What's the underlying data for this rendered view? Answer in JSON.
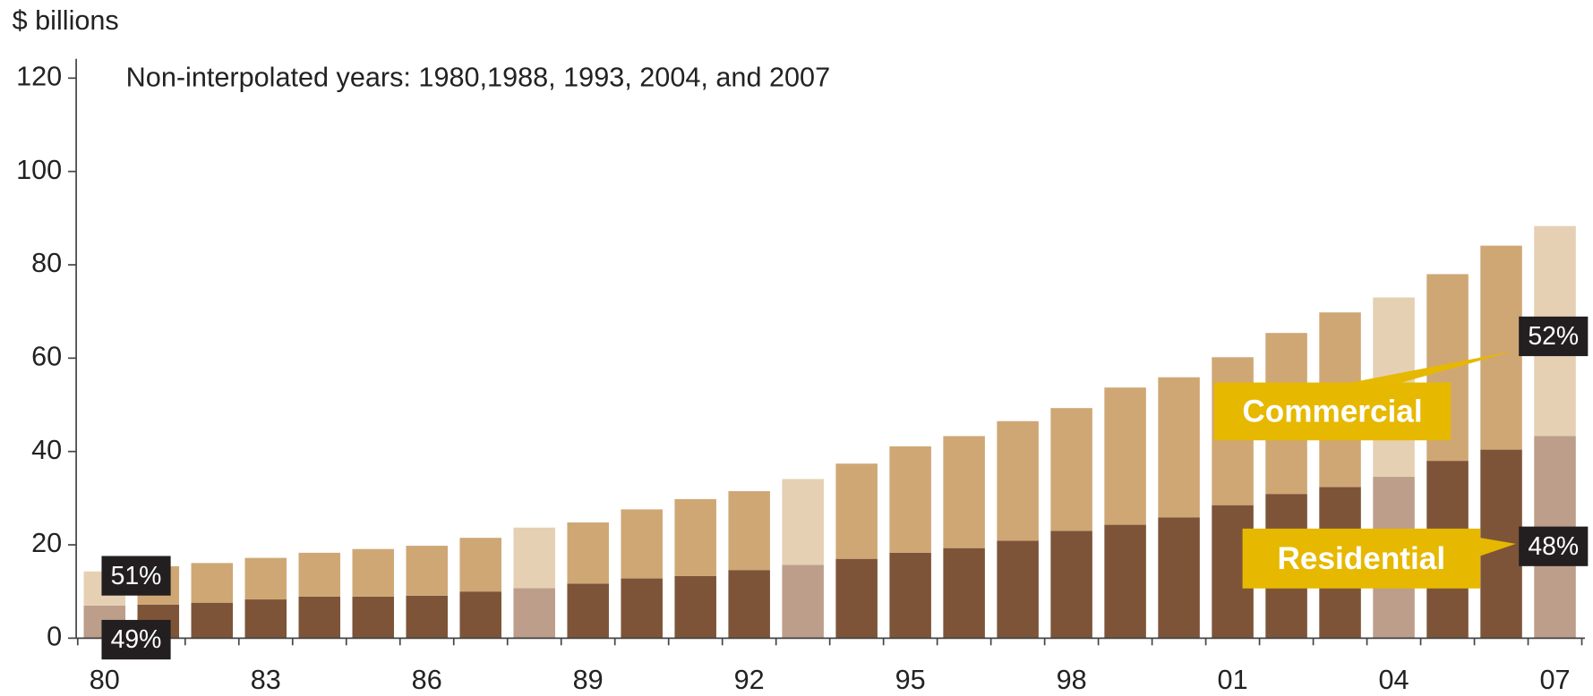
{
  "chart_data": {
    "type": "stacked_bar",
    "y_axis_label": "$ billions",
    "note": "Non-interpolated years: 1980,1988, 1993, 2004, and 2007",
    "categories": [
      "80",
      null,
      null,
      "83",
      null,
      null,
      "86",
      null,
      null,
      "89",
      null,
      null,
      "92",
      null,
      null,
      "95",
      null,
      null,
      "98",
      null,
      null,
      "01",
      null,
      null,
      "04",
      null,
      null,
      "07"
    ],
    "series": [
      {
        "name": "Residential",
        "color": "#7d5438",
        "colors": [
          "#bc9e8a",
          "#7d5438",
          "#7d5438",
          "#7d5438",
          "#7d5438",
          "#7d5438",
          "#7d5438",
          "#7d5438",
          "#bc9e8a",
          "#7d5438",
          "#7d5438",
          "#7d5438",
          "#7d5438",
          "#bc9e8a",
          "#7d5438",
          "#7d5438",
          "#7d5438",
          "#7d5438",
          "#7d5438",
          "#7d5438",
          "#7d5438",
          "#7d5438",
          "#7d5438",
          "#7d5438",
          "#bc9e8a",
          "#7d5438",
          "#7d5438",
          "#bc9e8a"
        ],
        "values": [
          7.0,
          7.2,
          7.6,
          8.3,
          8.9,
          8.9,
          9.1,
          10.0,
          10.7,
          11.7,
          12.8,
          13.3,
          14.6,
          15.7,
          17.0,
          18.3,
          19.3,
          20.9,
          23.0,
          24.3,
          25.9,
          28.5,
          30.9,
          32.4,
          34.6,
          38.0,
          40.4,
          43.3
        ]
      },
      {
        "name": "Commercial",
        "color": "#cfa775",
        "colors": [
          "#e5d0b3",
          "#cfa775",
          "#cfa775",
          "#cfa775",
          "#cfa775",
          "#cfa775",
          "#cfa775",
          "#cfa775",
          "#e5d0b3",
          "#cfa775",
          "#cfa775",
          "#cfa775",
          "#cfa775",
          "#e5d0b3",
          "#cfa775",
          "#cfa775",
          "#cfa775",
          "#cfa775",
          "#cfa775",
          "#cfa775",
          "#cfa775",
          "#cfa775",
          "#cfa775",
          "#cfa775",
          "#e5d0b3",
          "#cfa775",
          "#cfa775",
          "#e5d0b3"
        ],
        "values": [
          7.3,
          8.2,
          8.5,
          8.9,
          9.4,
          10.2,
          10.7,
          11.5,
          13.0,
          13.1,
          14.8,
          16.5,
          16.9,
          18.4,
          20.4,
          22.8,
          24.0,
          25.6,
          26.3,
          29.4,
          30.0,
          31.7,
          34.5,
          37.4,
          38.4,
          40.0,
          43.7,
          45.0
        ]
      }
    ],
    "annotations": [
      "51%",
      "49%",
      "52%",
      "48%"
    ],
    "callout_color": "#e6b800",
    "ylim": [
      0,
      120
    ],
    "yticks": [
      0,
      20,
      40,
      60,
      80,
      100,
      120
    ],
    "grid": false
  }
}
